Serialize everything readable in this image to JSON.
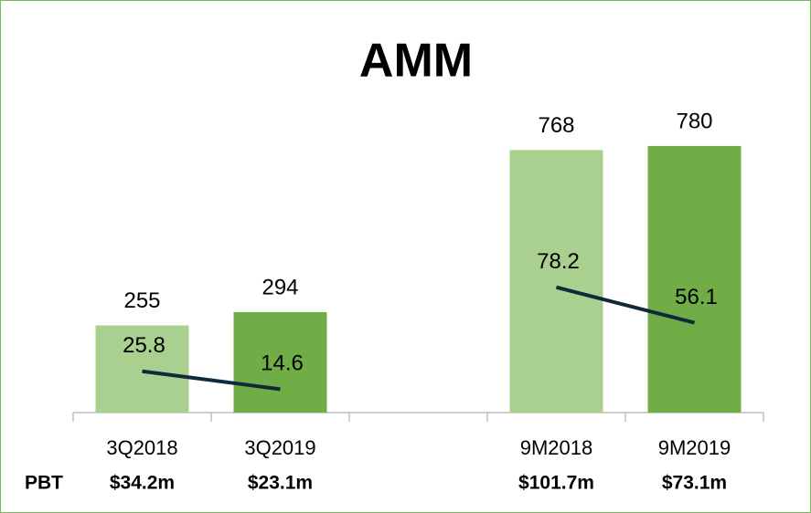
{
  "chart_data": {
    "type": "bar",
    "title": "AMM",
    "categories": [
      "3Q2018",
      "3Q2019",
      null,
      "9M2018",
      "9M2019"
    ],
    "series": [
      {
        "type": "bar",
        "values": [
          255,
          294,
          null,
          768,
          780
        ],
        "colors": [
          "#a9d08e",
          "#70ad47",
          null,
          "#a9d08e",
          "#70ad47"
        ]
      },
      {
        "type": "line",
        "axis": "y2",
        "values": [
          25.8,
          14.6,
          null,
          78.2,
          56.1
        ],
        "color": "#0f2a3b"
      }
    ],
    "ylim": [
      0,
      900
    ],
    "y2lim": [
      0,
      192
    ],
    "row_label": "PBT",
    "row_values": [
      "$34.2m",
      "$23.1m",
      null,
      "$101.7m",
      "$73.1m"
    ]
  }
}
